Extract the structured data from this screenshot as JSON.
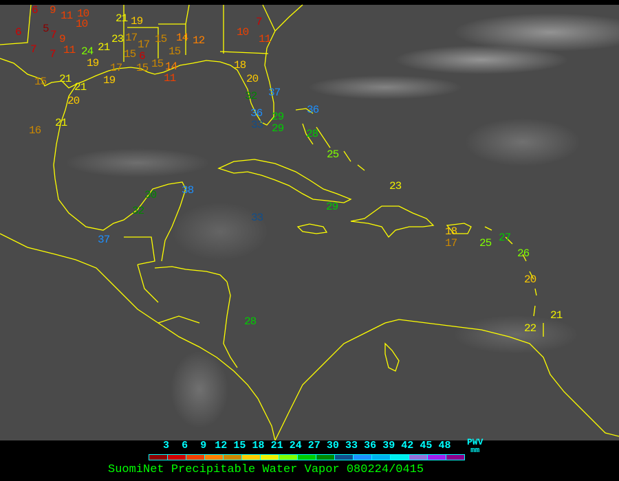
{
  "title": "SuomiNet Precipitable Water Vapor 080224/0415",
  "legend": {
    "unit_top": "PWV",
    "unit_bottom": "mm",
    "ticks": [
      "3",
      "6",
      "9",
      "12",
      "15",
      "18",
      "21",
      "24",
      "27",
      "30",
      "33",
      "36",
      "39",
      "42",
      "45",
      "48"
    ],
    "colors": [
      "#8b0000",
      "#d00000",
      "#f04000",
      "#ff8000",
      "#cc8800",
      "#ffcc00",
      "#f0f000",
      "#80ff00",
      "#00cc00",
      "#008800",
      "#104e8b",
      "#1e90ff",
      "#00b0ee",
      "#00eeee",
      "#9370db",
      "#a020f0",
      "#8b008b"
    ]
  },
  "coastline_color": "#ffff00",
  "stations": [
    "6",
    "9",
    "11",
    "10",
    "6",
    "5",
    "7",
    "9",
    "7",
    "7",
    "11",
    "24",
    "21",
    "23",
    "19",
    "17",
    "17",
    "21",
    "19",
    "10",
    "15",
    "14",
    "12",
    "15",
    "15",
    "6",
    "15",
    "15",
    "14",
    "11",
    "17",
    "19",
    "15",
    "21",
    "21",
    "20",
    "21",
    "16",
    "10",
    "11",
    "7",
    "18",
    "20",
    "32",
    "37",
    "36",
    "33",
    "29",
    "29",
    "36",
    "28",
    "25",
    "23",
    "29",
    "33",
    "38",
    "30",
    "32",
    "37",
    "28",
    "18",
    "17",
    "25",
    "27",
    "26",
    "20",
    "21",
    "22"
  ]
}
